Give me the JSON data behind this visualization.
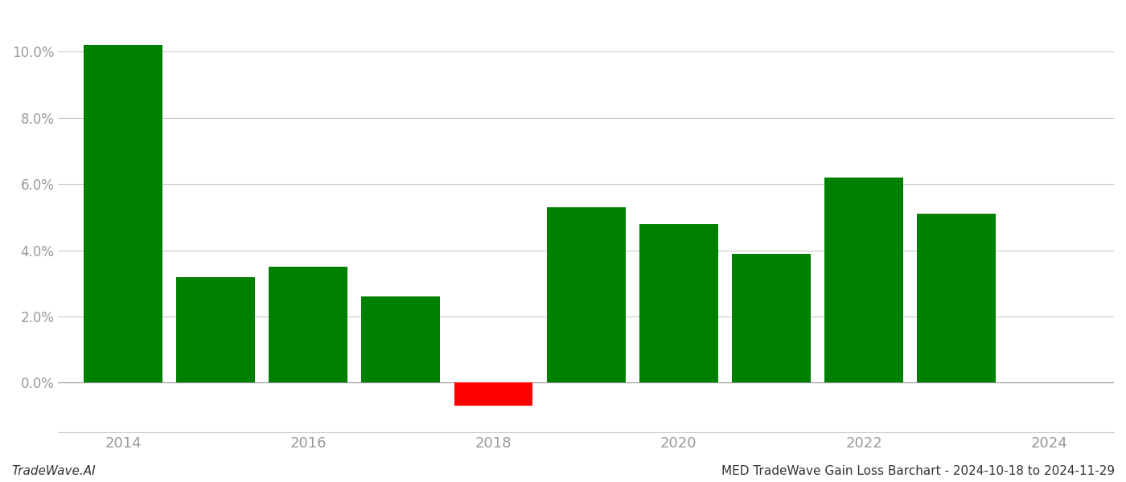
{
  "years": [
    2014,
    2015,
    2016,
    2017,
    2018,
    2019,
    2020,
    2021,
    2022,
    2023
  ],
  "values": [
    0.102,
    0.032,
    0.035,
    0.026,
    -0.007,
    0.053,
    0.048,
    0.039,
    0.062,
    0.051
  ],
  "colors": [
    "#008000",
    "#008000",
    "#008000",
    "#008000",
    "#ff0000",
    "#008000",
    "#008000",
    "#008000",
    "#008000",
    "#008000"
  ],
  "title": "MED TradeWave Gain Loss Barchart - 2024-10-18 to 2024-11-29",
  "watermark": "TradeWave.AI",
  "ylim_min": -0.015,
  "ylim_max": 0.112,
  "xlim_min": 2013.3,
  "xlim_max": 2024.7,
  "background_color": "#ffffff",
  "grid_color": "#cccccc",
  "tick_color": "#999999",
  "bar_width": 0.85,
  "xticks": [
    2014,
    2016,
    2018,
    2020,
    2022,
    2024
  ],
  "ytick_step": 0.02
}
